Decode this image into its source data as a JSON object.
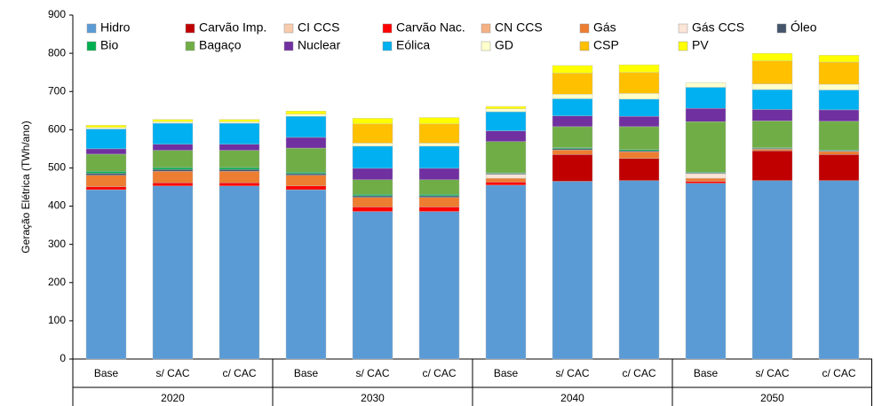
{
  "chart_data": {
    "type": "stacked_bar",
    "y_label": "Geração Elétrica (TWh/ano)",
    "categories": [
      "Base",
      "s/ CAC",
      "c/ CAC",
      "Base",
      "s/ CAC",
      "c/ CAC",
      "Base",
      "s/ CAC",
      "c/ CAC",
      "Base",
      "s/ CAC",
      "c/ CAC"
    ],
    "groups": [
      "2020",
      "2030",
      "2040",
      "2050"
    ],
    "ylim": [
      0,
      900
    ],
    "yticks": [
      0,
      100,
      200,
      300,
      400,
      500,
      600,
      700,
      800,
      900
    ],
    "legend": "top",
    "series": [
      {
        "name": "Hidro",
        "color": "#5b9bd5",
        "values": [
          443,
          453,
          453,
          443,
          386,
          386,
          455,
          465,
          467,
          460,
          467,
          467
        ]
      },
      {
        "name": "Carvão Imp.",
        "color": "#c00000",
        "values": [
          0,
          0,
          0,
          0,
          0,
          0,
          0,
          70,
          58,
          0,
          78,
          68
        ]
      },
      {
        "name": "CI CCS",
        "color": "#f8cbad",
        "values": [
          0,
          0,
          0,
          0,
          0,
          0,
          0,
          0,
          0,
          0,
          0,
          0
        ]
      },
      {
        "name": "Carvão Nac.",
        "color": "#ff0000",
        "values": [
          8,
          8,
          8,
          10,
          12,
          12,
          8,
          0,
          0,
          5,
          0,
          0
        ]
      },
      {
        "name": "CN CCS",
        "color": "#f4b183",
        "values": [
          0,
          0,
          0,
          0,
          0,
          0,
          0,
          0,
          0,
          0,
          0,
          0
        ]
      },
      {
        "name": "Gás",
        "color": "#ed7d31",
        "values": [
          30,
          30,
          30,
          28,
          25,
          25,
          10,
          12,
          17,
          8,
          4,
          8
        ]
      },
      {
        "name": "Gás CCS",
        "color": "#fce4d6",
        "values": [
          0,
          0,
          0,
          0,
          0,
          0,
          10,
          0,
          0,
          12,
          0,
          0
        ]
      },
      {
        "name": "Óleo",
        "color": "#44546a",
        "values": [
          5,
          5,
          5,
          4,
          4,
          4,
          2,
          3,
          3,
          2,
          2,
          2
        ]
      },
      {
        "name": "Bio",
        "color": "#00b050",
        "values": [
          5,
          5,
          5,
          4,
          4,
          4,
          2,
          3,
          3,
          2,
          2,
          2
        ]
      },
      {
        "name": "Bagaço",
        "color": "#70ad47",
        "values": [
          45,
          45,
          45,
          63,
          38,
          38,
          82,
          55,
          60,
          132,
          70,
          75
        ]
      },
      {
        "name": "Nuclear",
        "color": "#7030a0",
        "values": [
          14,
          16,
          16,
          28,
          30,
          30,
          28,
          28,
          27,
          35,
          30,
          30
        ]
      },
      {
        "name": "Eólica",
        "color": "#00b0f0",
        "values": [
          52,
          55,
          55,
          55,
          58,
          58,
          50,
          45,
          45,
          55,
          52,
          52
        ]
      },
      {
        "name": "GD",
        "color": "#ffffcc",
        "values": [
          4,
          4,
          4,
          6,
          8,
          8,
          8,
          12,
          15,
          12,
          15,
          15
        ]
      },
      {
        "name": "CSP",
        "color": "#ffc000",
        "values": [
          0,
          0,
          0,
          0,
          50,
          50,
          0,
          55,
          55,
          0,
          60,
          58
        ]
      },
      {
        "name": "PV",
        "color": "#ffff00",
        "values": [
          6,
          6,
          6,
          8,
          15,
          17,
          6,
          20,
          20,
          0,
          20,
          18
        ]
      }
    ]
  }
}
